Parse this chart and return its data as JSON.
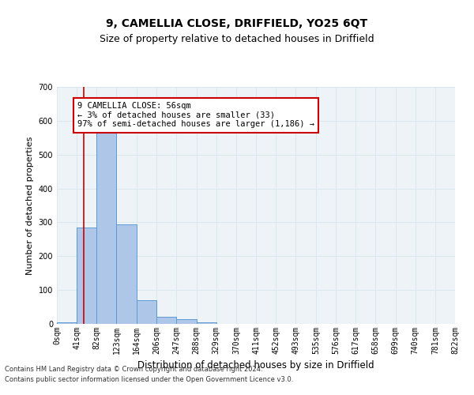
{
  "title1": "9, CAMELLIA CLOSE, DRIFFIELD, YO25 6QT",
  "title2": "Size of property relative to detached houses in Driffield",
  "xlabel": "Distribution of detached houses by size in Driffield",
  "ylabel": "Number of detached properties",
  "bin_edges": [
    0,
    41,
    82,
    123,
    164,
    206,
    247,
    288,
    329,
    370,
    411,
    452,
    493,
    535,
    576,
    617,
    658,
    699,
    740,
    781,
    822
  ],
  "bar_heights": [
    5,
    285,
    565,
    295,
    70,
    20,
    15,
    5,
    0,
    0,
    0,
    0,
    0,
    0,
    0,
    0,
    0,
    0,
    0,
    0
  ],
  "bar_color": "#aec6e8",
  "bar_edge_color": "#5b9bd5",
  "property_size": 56,
  "property_line_color": "#cc0000",
  "ylim": [
    0,
    700
  ],
  "annotation_text": "9 CAMELLIA CLOSE: 56sqm\n← 3% of detached houses are smaller (33)\n97% of semi-detached houses are larger (1,186) →",
  "annotation_box_color": "#ffffff",
  "annotation_box_edge": "#cc0000",
  "grid_color": "#dce8f0",
  "background_color": "#eef3f8",
  "footnote1": "Contains HM Land Registry data © Crown copyright and database right 2024.",
  "footnote2": "Contains public sector information licensed under the Open Government Licence v3.0.",
  "title1_fontsize": 10,
  "title2_fontsize": 9,
  "tick_label_fontsize": 7,
  "ylabel_fontsize": 8,
  "xlabel_fontsize": 8.5,
  "annotation_fontsize": 7.5,
  "footnote_fontsize": 6
}
